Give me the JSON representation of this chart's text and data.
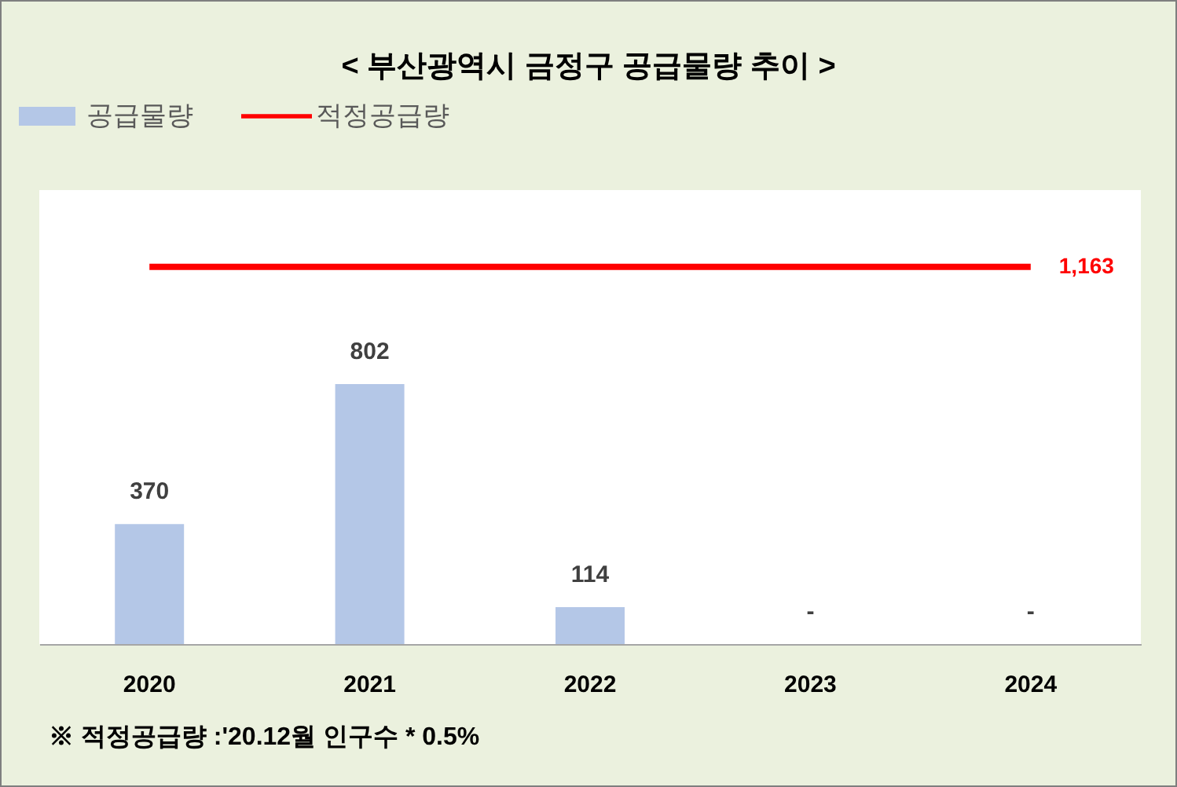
{
  "chart_data": {
    "type": "bar",
    "title": "< 부산광역시 금정구 공급물량 추이 >",
    "categories": [
      "2020",
      "2021",
      "2022",
      "2023",
      "2024"
    ],
    "series": [
      {
        "name": "공급물량",
        "color": "#b4c7e7",
        "values": [
          370,
          802,
          114,
          null,
          null
        ],
        "value_labels": [
          "370",
          "802",
          "114",
          "-",
          "-"
        ]
      },
      {
        "name": "적정공급량",
        "type": "line",
        "color": "#ff0000",
        "values": [
          1163,
          1163,
          1163,
          1163,
          1163
        ],
        "value_labels": [
          null,
          null,
          null,
          null,
          "1,163"
        ]
      }
    ],
    "ylim": [
      0,
      1400
    ],
    "tick_labels": "x",
    "legend": "top left",
    "marker": "none",
    "annotations": [
      "※ 적정공급량 :'20.12월 인구수 * 0.5%"
    ]
  }
}
